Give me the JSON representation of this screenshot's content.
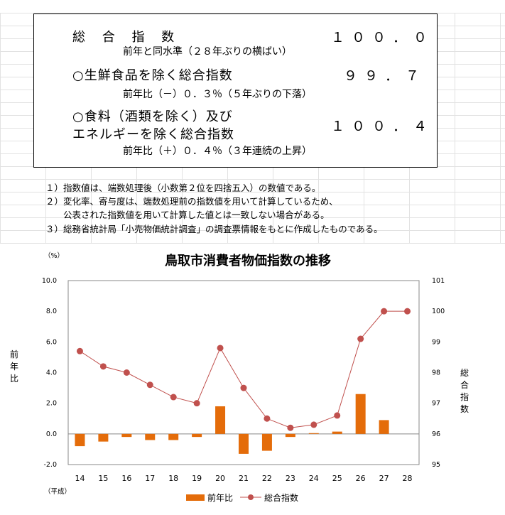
{
  "summary": {
    "rows": [
      {
        "name": "総 合 指 数",
        "value": "１００．０",
        "sub": "前年と同水準（２８年ぶりの横ばい）"
      },
      {
        "name": "○生鮮食品を除く総合指数",
        "value": "９９．７",
        "sub": "前年比（－）０．３％（５年ぶりの下落）"
      },
      {
        "name_line1": "○食料（酒類を除く）及び",
        "name_line2": "エネルギーを除く総合指数",
        "value": "１００．４",
        "sub": "前年比（＋）０．４％（３年連続の上昇）"
      }
    ]
  },
  "notes": [
    "１）指数値は、端数処理後（小数第２位を四捨五入）の数値である。",
    "２）変化率、寄与度は、端数処理前の指数値を用いて計算しているため、",
    "　　公表された指数値を用いて計算した値とは一致しない場合がある。",
    "３）総務省統計局「小売物価統計調査」の調査票情報をもとに作成したものである。"
  ],
  "chart_data": {
    "type": "bar",
    "title": "鳥取市消費者物価指数の推移",
    "categories": [
      "14",
      "15",
      "16",
      "17",
      "18",
      "19",
      "20",
      "21",
      "22",
      "23",
      "24",
      "25",
      "26",
      "27",
      "28"
    ],
    "x_era_label": "（平成）",
    "left_unit": "（%）",
    "ylabel_left": "前年比",
    "ylabel_right": "総合指数",
    "ylim_left": [
      -2.0,
      10.0
    ],
    "yticks_left": [
      "10.0",
      "8.0",
      "6.0",
      "4.0",
      "2.0",
      "0.0",
      "-2.0"
    ],
    "ylim_right": [
      95,
      101
    ],
    "yticks_right": [
      "101",
      "100",
      "99",
      "98",
      "97",
      "96",
      "95"
    ],
    "series": [
      {
        "name": "前年比",
        "type": "bar",
        "color": "#e46c0a",
        "values": [
          -0.8,
          -0.5,
          -0.2,
          -0.4,
          -0.4,
          -0.2,
          1.8,
          -1.3,
          -1.1,
          -0.2,
          0.05,
          0.15,
          2.6,
          0.9,
          0.0
        ]
      },
      {
        "name": "総合指数",
        "type": "line",
        "color": "#c0504d",
        "values": [
          98.7,
          98.2,
          98.0,
          97.6,
          97.2,
          97.0,
          98.8,
          97.5,
          96.5,
          96.2,
          96.3,
          96.6,
          99.1,
          100.0,
          100.0
        ]
      }
    ],
    "legend_position": "bottom-center",
    "grid": false
  }
}
